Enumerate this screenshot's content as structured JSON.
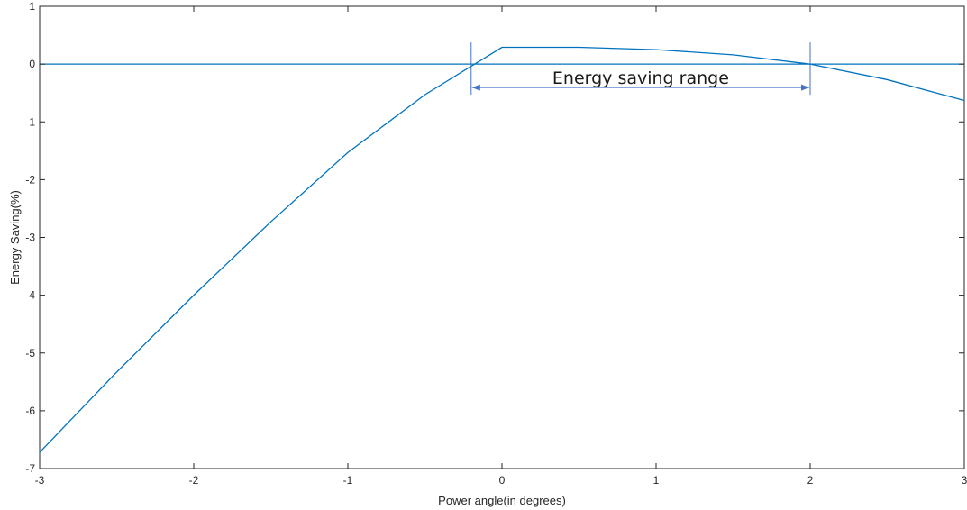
{
  "chart_data": {
    "type": "line",
    "title": "",
    "xlabel": "Power angle(in degrees)",
    "ylabel": "Energy Saving(%)",
    "xlim": [
      -3,
      3
    ],
    "ylim": [
      -7,
      1
    ],
    "xticks": [
      -3,
      -2,
      -1,
      0,
      1,
      2,
      3
    ],
    "yticks": [
      -7,
      -6,
      -5,
      -4,
      -3,
      -2,
      -1,
      0,
      1
    ],
    "grid": false,
    "colors": {
      "series": "#0072BD",
      "annotation": "#4472C4",
      "axis": "#262626"
    },
    "series": [
      {
        "x": [
          -3,
          -2.5,
          -2,
          -1.5,
          -1,
          -0.5,
          0,
          0.5,
          1,
          1.5,
          2,
          2.5,
          3
        ],
        "values": [
          -6.72,
          -5.33,
          -4.0,
          -2.73,
          -1.53,
          -0.53,
          0.29,
          0.29,
          0.25,
          0.16,
          0.0,
          -0.27,
          -0.63
        ]
      }
    ],
    "reference_lines": [
      {
        "y": 0
      }
    ],
    "annotation": {
      "text": "Energy saving range",
      "x_start": -0.2,
      "x_end": 2.0
    }
  }
}
